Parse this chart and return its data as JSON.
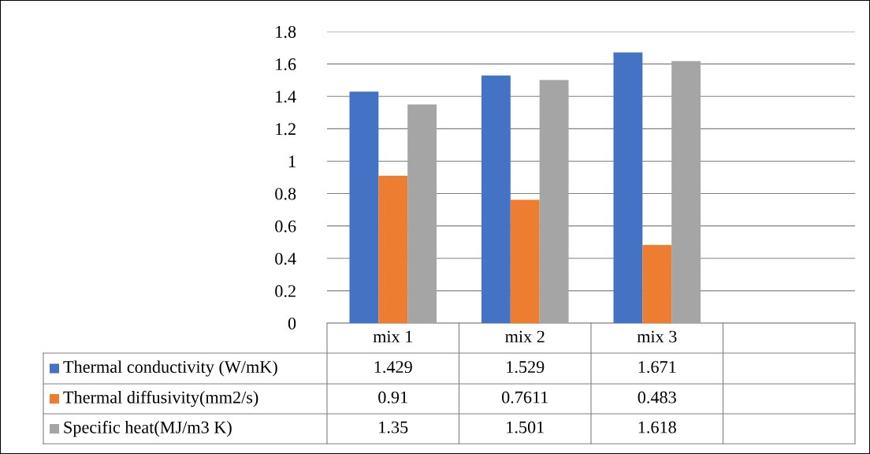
{
  "chart_data": {
    "type": "bar",
    "categories": [
      "mix 1",
      "mix 2",
      "mix 3",
      null
    ],
    "series": [
      {
        "name": "Thermal conductivity (W/mK)",
        "color": "#4472c4",
        "values": [
          1.429,
          1.529,
          1.671,
          null
        ]
      },
      {
        "name": "Thermal diffusivity(mm2/s)",
        "color": "#ed7d31",
        "values": [
          0.91,
          0.7611,
          0.483,
          null
        ]
      },
      {
        "name": "Specific heat(MJ/m3 K)",
        "color": "#a5a5a5",
        "values": [
          1.35,
          1.501,
          1.618,
          null
        ]
      }
    ],
    "ylim": [
      0,
      1.8
    ],
    "yticks": [
      0,
      0.2,
      0.4,
      0.6,
      0.8,
      1,
      1.2,
      1.4,
      1.6,
      1.8
    ],
    "grid": "y",
    "legend": "bottom",
    "data_labels": true
  }
}
